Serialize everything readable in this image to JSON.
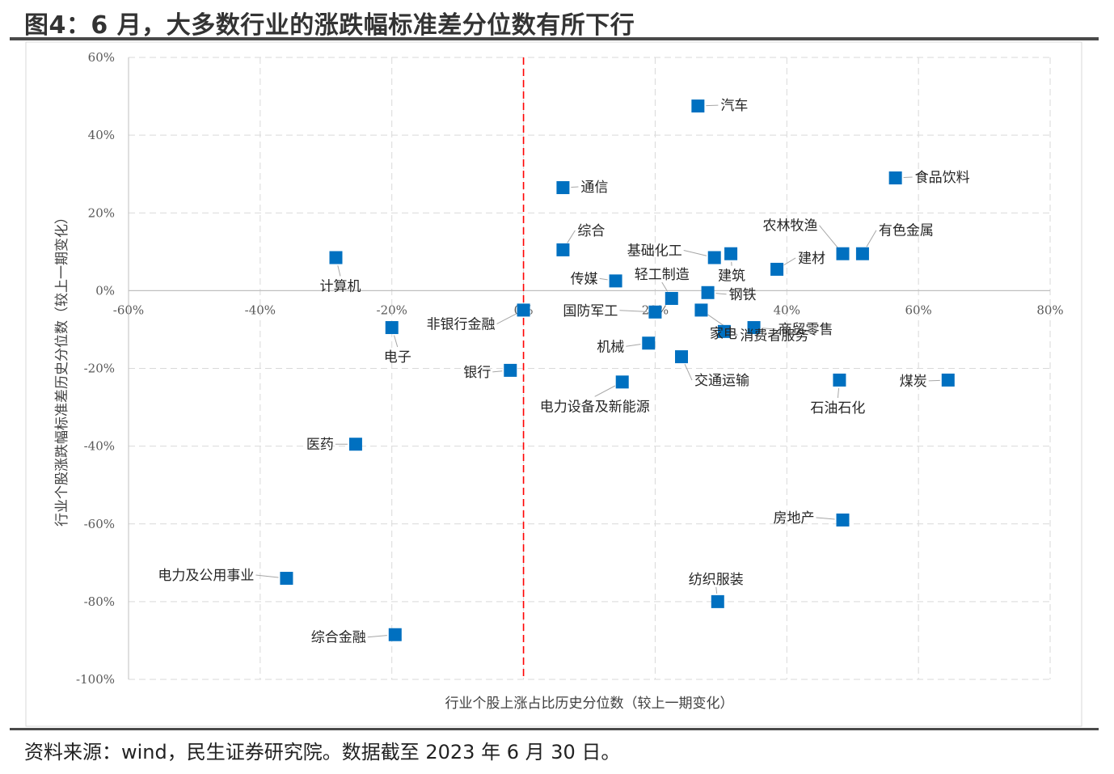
{
  "title": "图4：6 月，大多数行业的涨跌幅标准差分位数有所下行",
  "source": "资料来源：wind，民生证券研究院。数据截至 2023 年 6 月 30 日。",
  "chart_data": {
    "type": "scatter",
    "xlabel": "行业个股上涨占比历史分位数（较上一期变化）",
    "ylabel": "行业个股涨跌幅标准差历史分位数（较上一期变化）",
    "xlim": [
      -60,
      80
    ],
    "ylim": [
      -100,
      60
    ],
    "x_ticks": [
      -60,
      -40,
      -20,
      0,
      20,
      40,
      60,
      80
    ],
    "y_ticks": [
      60,
      40,
      20,
      0,
      -20,
      -40,
      -60,
      -80,
      -100
    ],
    "x_tick_labels": [
      "-60%",
      "-40%",
      "-20%",
      "0%",
      "20%",
      "40%",
      "60%",
      "80%"
    ],
    "y_tick_labels": [
      "60%",
      "40%",
      "20%",
      "0%",
      "-20%",
      "-40%",
      "-60%",
      "-80%",
      "-100%"
    ],
    "grid": true,
    "reference_line": {
      "x": 0,
      "color": "#ff0000",
      "style": "dashed"
    },
    "marker_color": "#0070c0",
    "points": [
      {
        "label": "汽车",
        "x": 26.5,
        "y": 47.5
      },
      {
        "label": "食品饮料",
        "x": 56.5,
        "y": 29
      },
      {
        "label": "通信",
        "x": 6,
        "y": 26.5
      },
      {
        "label": "综合",
        "x": 6,
        "y": 10.5
      },
      {
        "label": "基础化工",
        "x": 29,
        "y": 8.5
      },
      {
        "label": "建筑",
        "x": 31.5,
        "y": 9.5
      },
      {
        "label": "农林牧渔",
        "x": 48.5,
        "y": 9.5
      },
      {
        "label": "有色金属",
        "x": 51.5,
        "y": 9.5
      },
      {
        "label": "建材",
        "x": 38.5,
        "y": 5.5
      },
      {
        "label": "计算机",
        "x": -28.5,
        "y": 8.5
      },
      {
        "label": "传媒",
        "x": 14,
        "y": 2.5
      },
      {
        "label": "轻工制造",
        "x": 22.5,
        "y": -2
      },
      {
        "label": "钢铁",
        "x": 28,
        "y": -0.5
      },
      {
        "label": "国防军工",
        "x": 20,
        "y": -5.5
      },
      {
        "label": "非银行金融",
        "x": 0,
        "y": -5
      },
      {
        "label": "家电",
        "x": 30.5,
        "y": -10.5
      },
      {
        "label": "商贸零售",
        "x": 35,
        "y": -9.5
      },
      {
        "label": "电子",
        "x": -20,
        "y": -9.5
      },
      {
        "label": "机械",
        "x": 19,
        "y": -13.5
      },
      {
        "label": "消费者服务",
        "x": 27,
        "y": -5
      },
      {
        "label": "交通运输",
        "x": 24,
        "y": -17
      },
      {
        "label": "银行",
        "x": -2,
        "y": -20.5
      },
      {
        "label": "电力设备及新能源",
        "x": 15,
        "y": -23.5
      },
      {
        "label": "石油石化",
        "x": 48,
        "y": -23
      },
      {
        "label": "煤炭",
        "x": 64.5,
        "y": -23
      },
      {
        "label": "医药",
        "x": -25.5,
        "y": -39.5
      },
      {
        "label": "房地产",
        "x": 48.5,
        "y": -59
      },
      {
        "label": "电力及公用事业",
        "x": -36,
        "y": -74
      },
      {
        "label": "纺织服装",
        "x": 29.5,
        "y": -80
      },
      {
        "label": "综合金融",
        "x": -19.5,
        "y": -88.5
      }
    ]
  }
}
